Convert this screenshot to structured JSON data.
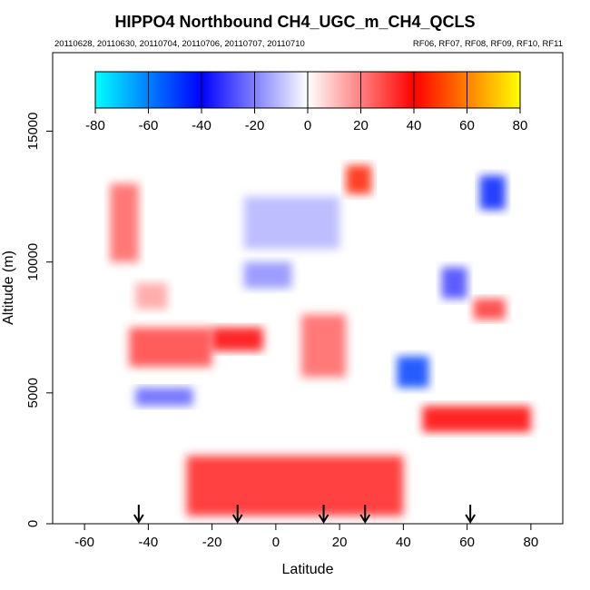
{
  "chart_data": {
    "type": "heatmap",
    "title": "HIPPO4 Northbound CH4_UGC_m_CH4_QCLS",
    "subtitle_left": "20110628, 20110630, 20110704, 20110706, 20110707, 20110710",
    "subtitle_right": "RF06, RF07, RF08, RF09, RF10, RF11",
    "xlabel": "Latitude",
    "ylabel": "Altitude (m)",
    "xlim": [
      -70,
      90
    ],
    "ylim": [
      0,
      18000
    ],
    "x_ticks": [
      "-60",
      "-40",
      "-20",
      "0",
      "20",
      "40",
      "60",
      "80"
    ],
    "x_tick_values": [
      -60,
      -40,
      -20,
      0,
      20,
      40,
      60,
      80
    ],
    "y_ticks": [
      "0",
      "5000",
      "10000",
      "15000"
    ],
    "y_tick_values": [
      0,
      5000,
      10000,
      15000
    ],
    "colorbar": {
      "ticks": [
        "-80",
        "-60",
        "-40",
        "-20",
        "0",
        "20",
        "40",
        "60",
        "80"
      ],
      "tick_values": [
        -80,
        -60,
        -40,
        -20,
        0,
        20,
        40,
        60,
        80
      ],
      "range": [
        -80,
        80
      ],
      "colors": [
        "#00ffff",
        "#0000ff",
        "#ffffff",
        "#ff0000",
        "#ffff00"
      ]
    },
    "arrows_latitude": [
      -43,
      -12,
      15,
      28,
      61
    ],
    "regions": [
      {
        "lat": [
          -52,
          -43
        ],
        "alt": [
          10000,
          13000
        ],
        "value": 25
      },
      {
        "lat": [
          -44,
          -34
        ],
        "alt": [
          8200,
          9200
        ],
        "value": 15
      },
      {
        "lat": [
          -46,
          -20
        ],
        "alt": [
          6000,
          7500
        ],
        "value": 30
      },
      {
        "lat": [
          -20,
          -4
        ],
        "alt": [
          6600,
          7500
        ],
        "value": 40
      },
      {
        "lat": [
          -44,
          -26
        ],
        "alt": [
          4500,
          5200
        ],
        "value": -25
      },
      {
        "lat": [
          -28,
          40
        ],
        "alt": [
          300,
          2600
        ],
        "value": 35
      },
      {
        "lat": [
          -10,
          5
        ],
        "alt": [
          9000,
          10000
        ],
        "value": -18
      },
      {
        "lat": [
          -10,
          20
        ],
        "alt": [
          10500,
          12500
        ],
        "value": -12
      },
      {
        "lat": [
          8,
          22
        ],
        "alt": [
          5600,
          8000
        ],
        "value": 25
      },
      {
        "lat": [
          22,
          30
        ],
        "alt": [
          12600,
          13700
        ],
        "value": 45
      },
      {
        "lat": [
          38,
          48
        ],
        "alt": [
          5200,
          6400
        ],
        "value": -50
      },
      {
        "lat": [
          46,
          80
        ],
        "alt": [
          3500,
          4500
        ],
        "value": 40
      },
      {
        "lat": [
          62,
          72
        ],
        "alt": [
          7800,
          8600
        ],
        "value": 32
      },
      {
        "lat": [
          64,
          72
        ],
        "alt": [
          12000,
          13300
        ],
        "value": -45
      },
      {
        "lat": [
          52,
          60
        ],
        "alt": [
          8600,
          9800
        ],
        "value": -30
      }
    ]
  }
}
